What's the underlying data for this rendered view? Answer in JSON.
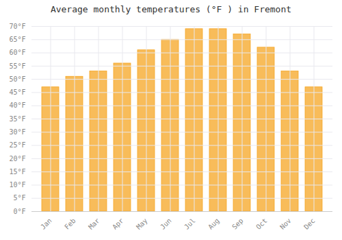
{
  "chart_data": {
    "type": "bar",
    "title": "Average monthly temperatures (°F ) in Fremont",
    "categories": [
      "Jan",
      "Feb",
      "Mar",
      "Apr",
      "May",
      "Jun",
      "Jul",
      "Aug",
      "Sep",
      "Oct",
      "Nov",
      "Dec"
    ],
    "values": [
      47,
      51,
      53,
      56,
      61,
      65,
      69,
      69,
      67,
      62,
      53,
      47
    ],
    "color": "#F5A623",
    "ylim": [
      0,
      70
    ],
    "yticks": [
      {
        "value": 0,
        "label": "0°F"
      },
      {
        "value": 5,
        "label": "5°F"
      },
      {
        "value": 10,
        "label": "10°F"
      },
      {
        "value": 15,
        "label": "15°F"
      },
      {
        "value": 20,
        "label": "20°F"
      },
      {
        "value": 25,
        "label": "25°F"
      },
      {
        "value": 30,
        "label": "30°F"
      },
      {
        "value": 35,
        "label": "35°F"
      },
      {
        "value": 40,
        "label": "40°F"
      },
      {
        "value": 45,
        "label": "45°F"
      },
      {
        "value": 50,
        "label": "50°F"
      },
      {
        "value": 55,
        "label": "55°F"
      },
      {
        "value": 60,
        "label": "60°F"
      },
      {
        "value": 65,
        "label": "65°F"
      },
      {
        "value": 70,
        "label": "70°F"
      }
    ],
    "grid": true
  }
}
